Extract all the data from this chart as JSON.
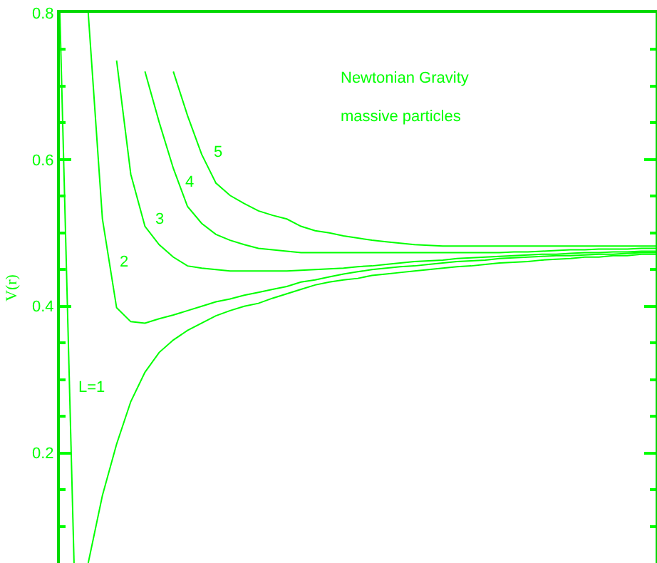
{
  "chart_data": {
    "type": "line",
    "ylabel": "V(r)",
    "annotations": [
      "Newtonian Gravity",
      "massive particles"
    ],
    "categories": [
      null,
      null,
      null,
      null,
      null,
      null,
      null,
      null,
      null,
      null,
      null,
      null,
      null,
      null,
      null,
      null,
      null,
      null,
      null,
      null,
      null,
      null,
      null,
      null,
      null,
      null,
      null,
      null,
      null,
      null,
      null,
      null,
      null,
      null,
      null,
      null,
      null,
      null,
      null,
      null,
      null,
      null,
      null
    ],
    "series": [
      {
        "color": "#00ff00",
        "values": [
          0.8,
          0.05,
          null,
          null,
          null,
          null,
          null,
          null,
          null,
          null,
          null,
          null,
          null,
          null,
          null,
          null,
          null,
          null,
          null,
          null,
          null,
          null,
          null,
          null,
          null,
          null,
          null,
          null,
          null,
          null,
          null,
          null,
          null,
          null,
          null,
          null,
          null,
          null,
          null,
          null,
          null,
          null,
          null
        ]
      },
      {
        "name": "L=1",
        "color": "#00ff00",
        "values": [
          null,
          null,
          0.05,
          0.142,
          0.212,
          0.27,
          0.31,
          0.337,
          0.354,
          0.367,
          0.377,
          0.387,
          0.394,
          0.4,
          0.404,
          0.411,
          0.417,
          0.423,
          0.429,
          0.433,
          0.436,
          0.438,
          0.442,
          0.444,
          0.446,
          0.448,
          0.45,
          0.452,
          0.454,
          0.455,
          0.457,
          0.459,
          0.46,
          0.461,
          0.463,
          0.464,
          0.465,
          0.467,
          0.467,
          0.469,
          0.469,
          0.471,
          0.471
        ]
      },
      {
        "name": "2",
        "color": "#00ff00",
        "values": [
          null,
          null,
          0.8,
          0.519,
          0.398,
          0.379,
          0.377,
          0.383,
          0.388,
          0.394,
          0.4,
          0.406,
          0.41,
          0.415,
          0.419,
          0.423,
          0.427,
          0.433,
          0.436,
          0.44,
          0.444,
          0.447,
          0.45,
          0.452,
          0.454,
          0.455,
          0.457,
          0.459,
          0.461,
          0.462,
          0.463,
          0.465,
          0.466,
          0.467,
          0.468,
          0.469,
          0.469,
          0.47,
          0.471,
          0.471,
          0.472,
          0.473,
          0.473
        ]
      },
      {
        "name": "3",
        "color": "#00ff00",
        "values": [
          null,
          null,
          null,
          null,
          0.735,
          0.58,
          0.509,
          0.484,
          0.467,
          0.455,
          0.452,
          0.45,
          0.448,
          0.448,
          0.448,
          0.448,
          0.448,
          0.449,
          0.45,
          0.451,
          0.452,
          0.454,
          0.455,
          0.457,
          0.459,
          0.461,
          0.462,
          0.463,
          0.465,
          0.466,
          0.467,
          0.468,
          0.469,
          0.47,
          0.471,
          0.471,
          0.472,
          0.473,
          0.473,
          0.474,
          0.474,
          0.475,
          0.475
        ]
      },
      {
        "name": "4",
        "color": "#00ff00",
        "values": [
          null,
          null,
          null,
          null,
          null,
          null,
          0.72,
          0.651,
          0.588,
          0.536,
          0.513,
          0.498,
          0.49,
          0.484,
          0.479,
          0.477,
          0.475,
          0.473,
          0.473,
          0.473,
          0.473,
          0.473,
          0.473,
          0.473,
          0.473,
          0.473,
          0.473,
          0.473,
          0.473,
          0.473,
          0.473,
          0.473,
          0.474,
          0.474,
          0.475,
          0.476,
          0.477,
          0.477,
          0.478,
          0.478,
          0.478,
          0.479,
          0.479
        ]
      },
      {
        "name": "5",
        "color": "#00ff00",
        "values": [
          null,
          null,
          null,
          null,
          null,
          null,
          null,
          null,
          0.72,
          0.66,
          0.607,
          0.568,
          0.551,
          0.54,
          0.53,
          0.524,
          0.519,
          0.509,
          0.503,
          0.5,
          0.496,
          0.493,
          0.49,
          0.488,
          0.486,
          0.484,
          0.483,
          0.482,
          0.482,
          0.482,
          0.482,
          0.482,
          0.482,
          0.482,
          0.482,
          0.482,
          0.482,
          0.482,
          0.482,
          0.482,
          0.482,
          0.482,
          0.482
        ]
      }
    ],
    "ylim": [
      0.05,
      0.8
    ],
    "yticks": [
      0.2,
      0.4,
      0.6,
      0.8
    ],
    "grid": false,
    "legend": false,
    "marker": "none",
    "line_style": "solid"
  }
}
